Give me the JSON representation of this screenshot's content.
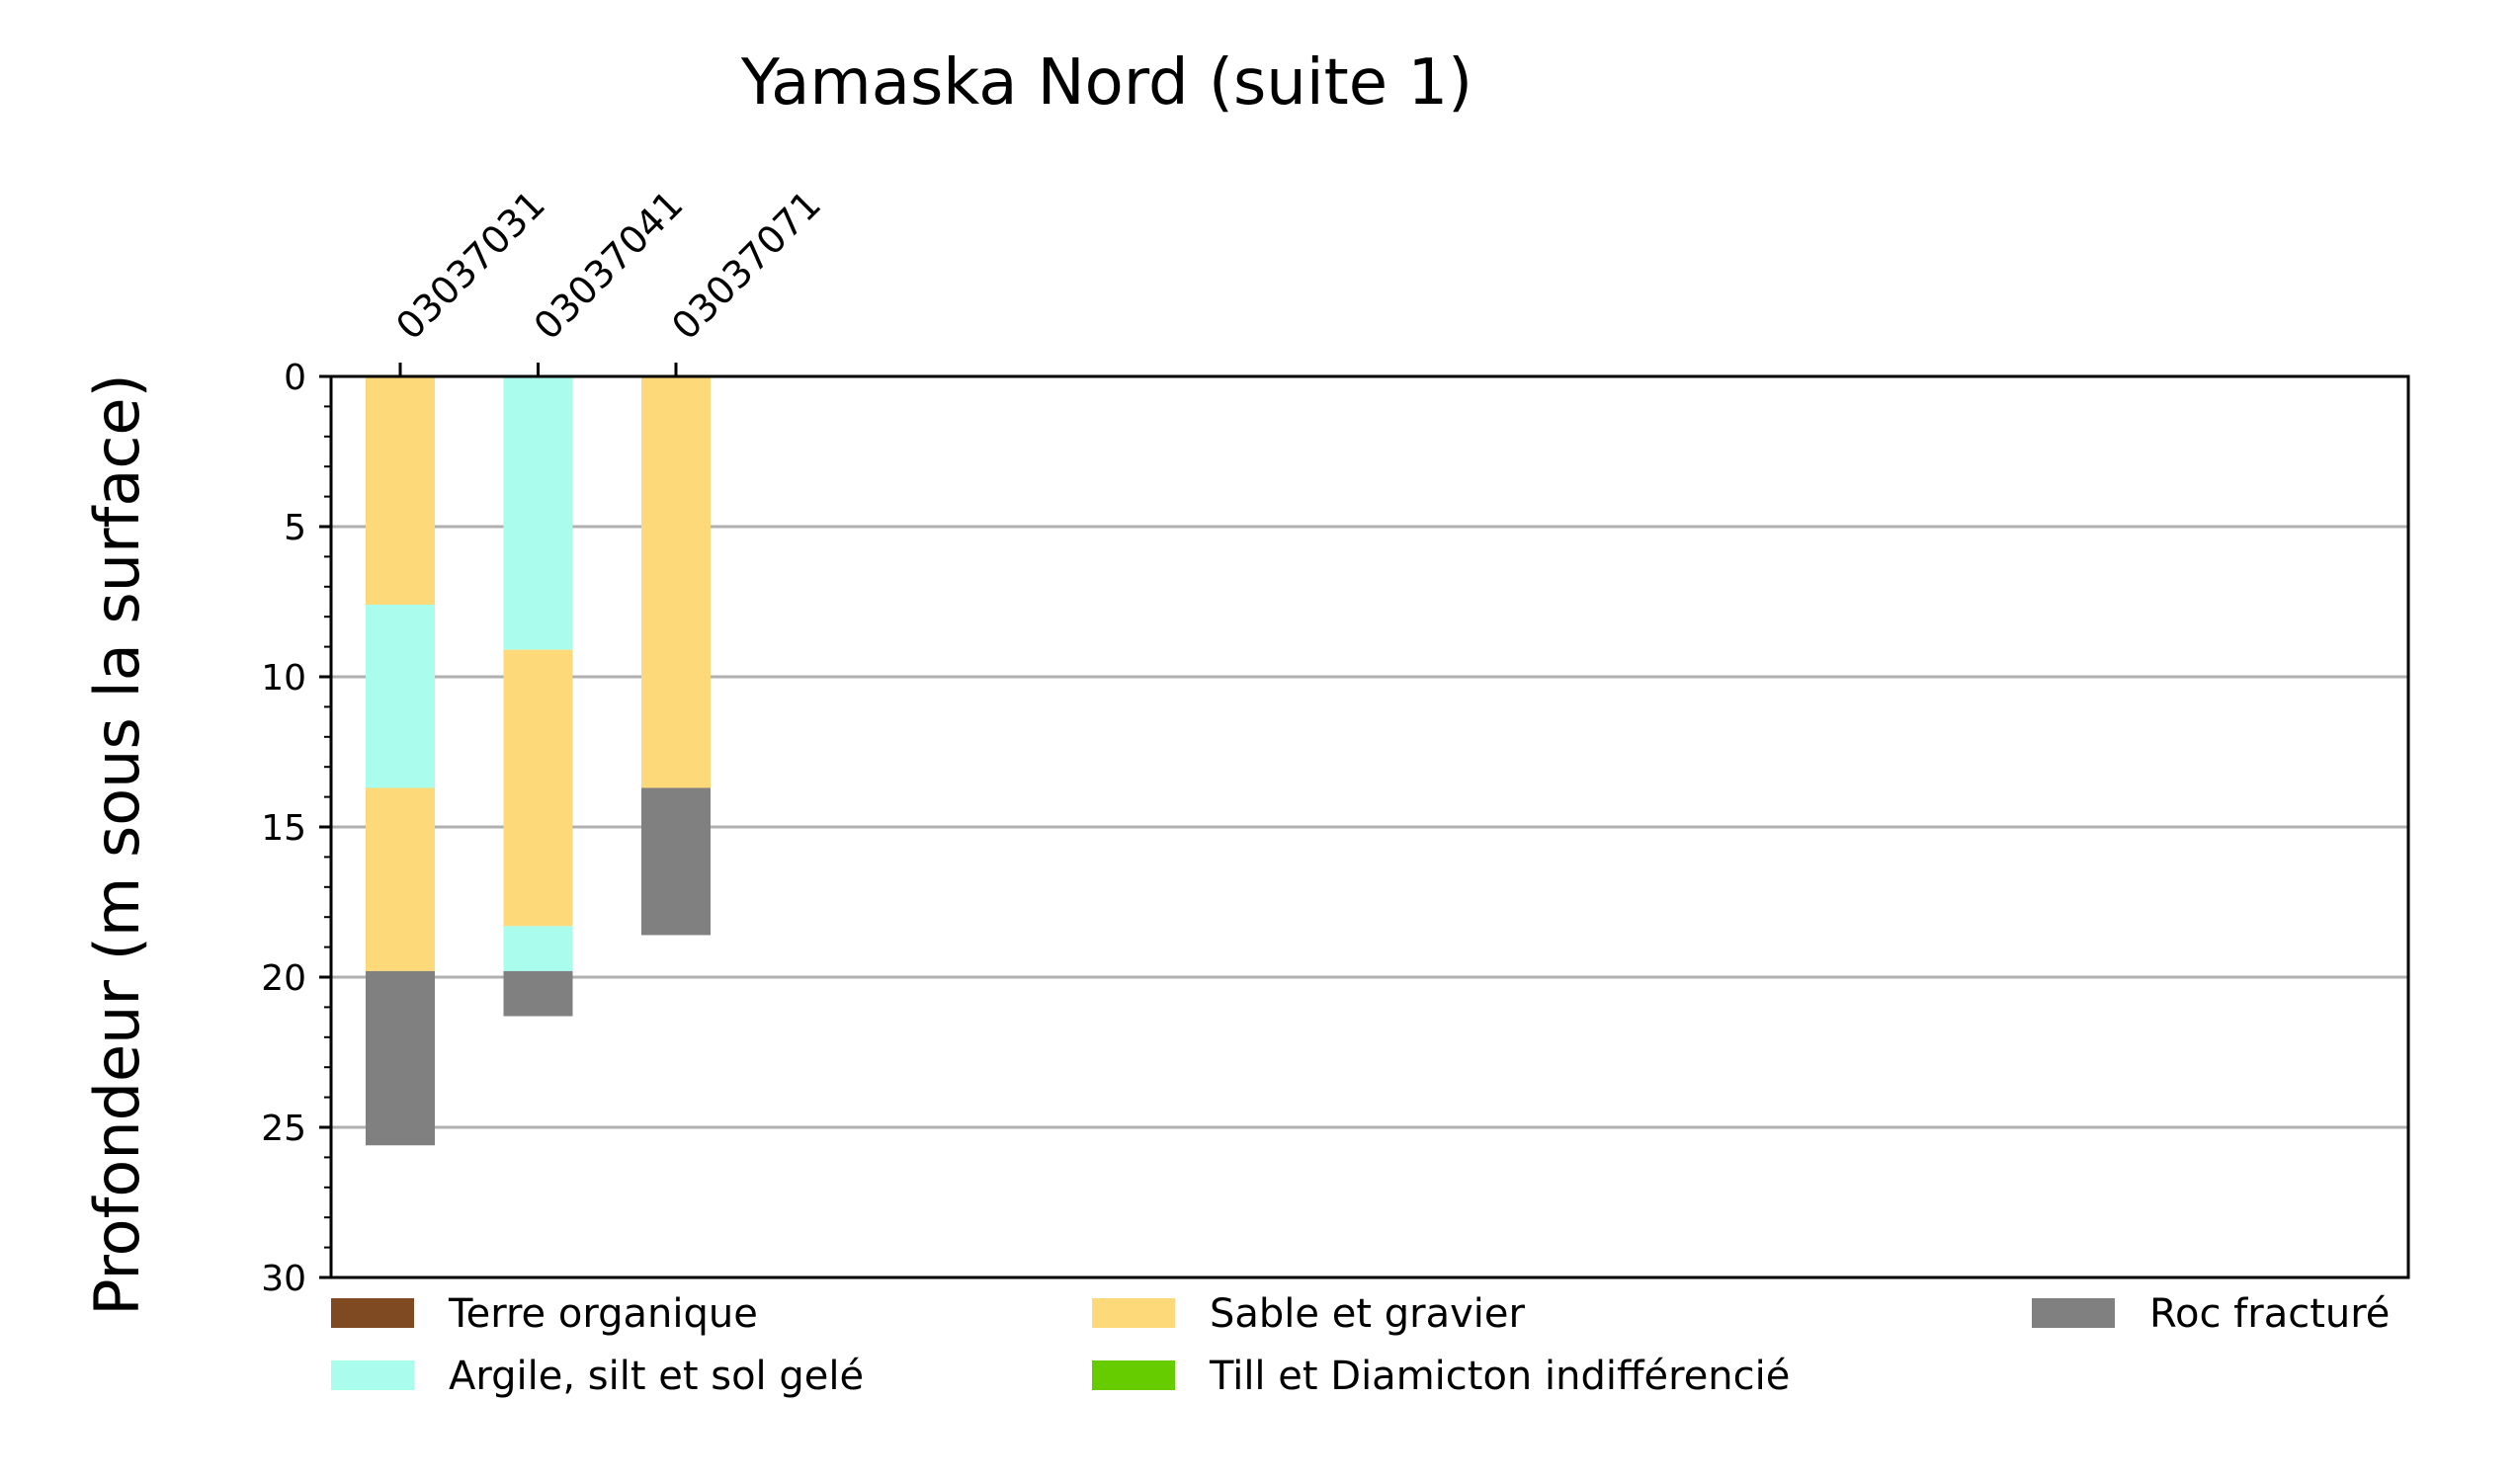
{
  "chart_data": {
    "type": "bar",
    "orientation": "vertical-stacked-depth",
    "title": "Yamaska Nord (suite 1)",
    "xlabel": "",
    "ylabel": "Profondeur (m sous la surface)",
    "ylim": [
      0,
      30
    ],
    "y_inverted": true,
    "y_ticks": [
      "0",
      "5",
      "10",
      "15",
      "20",
      "25",
      "30"
    ],
    "grid": "horizontal",
    "categories": [
      "03037031",
      "03037041",
      "03037071"
    ],
    "legend_position": "bottom",
    "legend": [
      {
        "name": "Terre organique",
        "color": "#7f4a22"
      },
      {
        "name": "Argile, silt et sol gelé",
        "color": "#aafcec"
      },
      {
        "name": "Sable et gravier",
        "color": "#fdd97a"
      },
      {
        "name": "Till et Diamicton indifférencié",
        "color": "#66cc00"
      },
      {
        "name": "Roc fracturé",
        "color": "#808080"
      }
    ],
    "wells": [
      {
        "id": "03037031",
        "layers": [
          {
            "material": "Sable et gravier",
            "top": 0,
            "bottom": 7.6
          },
          {
            "material": "Argile, silt et sol gelé",
            "top": 7.6,
            "bottom": 13.7
          },
          {
            "material": "Sable et gravier",
            "top": 13.7,
            "bottom": 19.8
          },
          {
            "material": "Roc fracturé",
            "top": 19.8,
            "bottom": 25.6
          }
        ]
      },
      {
        "id": "03037041",
        "layers": [
          {
            "material": "Argile, silt et sol gelé",
            "top": 0,
            "bottom": 9.1
          },
          {
            "material": "Sable et gravier",
            "top": 9.1,
            "bottom": 18.3
          },
          {
            "material": "Argile, silt et sol gelé",
            "top": 18.3,
            "bottom": 19.8
          },
          {
            "material": "Roc fracturé",
            "top": 19.8,
            "bottom": 21.3
          }
        ]
      },
      {
        "id": "03037071",
        "layers": [
          {
            "material": "Sable et gravier",
            "top": 0,
            "bottom": 13.7
          },
          {
            "material": "Roc fracturé",
            "top": 13.7,
            "bottom": 18.6
          }
        ]
      }
    ]
  }
}
